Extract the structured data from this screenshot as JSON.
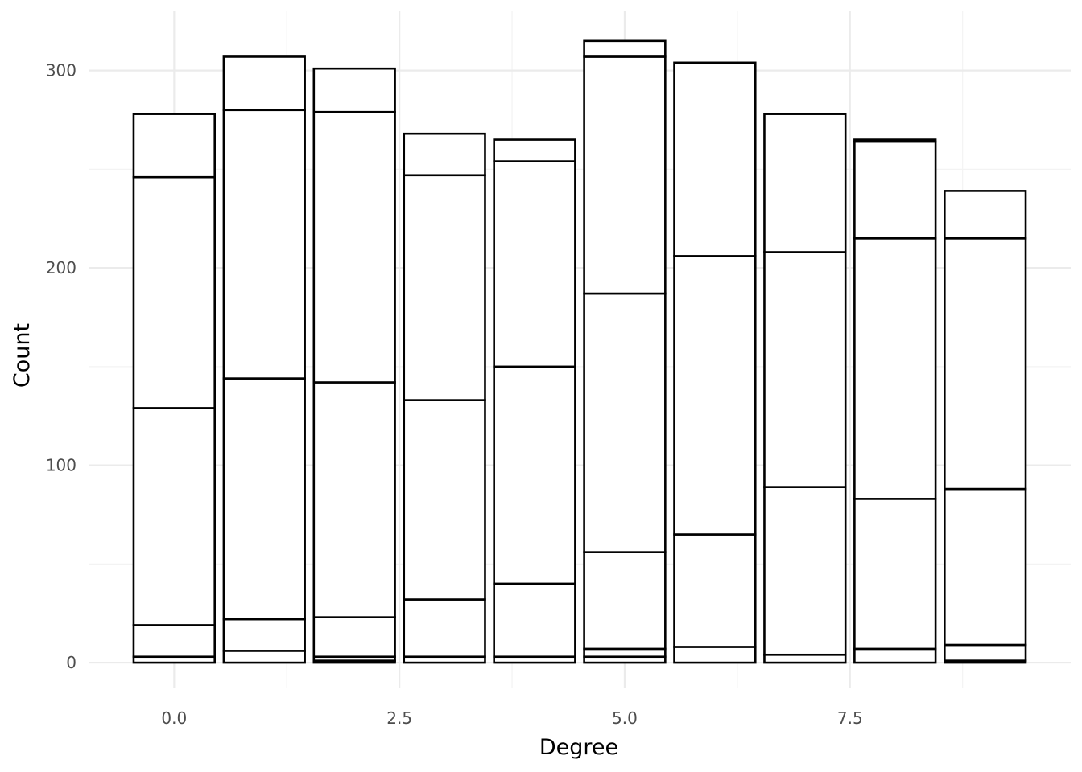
{
  "chart_data": {
    "type": "bar",
    "stacked": true,
    "title": "",
    "xlabel": "Degree",
    "ylabel": "Count",
    "xlim": [
      -0.95,
      9.95
    ],
    "ylim": [
      -13,
      330
    ],
    "x_ticks": [
      0.0,
      2.5,
      5.0,
      7.5
    ],
    "x_tick_labels": [
      "0.0",
      "2.5",
      "5.0",
      "7.5"
    ],
    "y_ticks": [
      0,
      100,
      200,
      300
    ],
    "y_tick_labels": [
      "0",
      "100",
      "200",
      "300"
    ],
    "x_minor_ticks": [
      1.25,
      3.75,
      6.25,
      8.75
    ],
    "y_minor_ticks": [
      50,
      150,
      250
    ],
    "grid": true,
    "legend": "none",
    "colors": {
      "bar_fill": "#ffffff",
      "bar_outline": "#000000",
      "grid": "#ebebeb"
    },
    "x": [
      0,
      1,
      2,
      3,
      4,
      5,
      6,
      7,
      8,
      9
    ],
    "stack_boundaries": [
      [
        0,
        3,
        19,
        129,
        246,
        278
      ],
      [
        0,
        6,
        22,
        144,
        280,
        307
      ],
      [
        0,
        1,
        3,
        23,
        142,
        279,
        301
      ],
      [
        0,
        3,
        32,
        133,
        247,
        268
      ],
      [
        0,
        3,
        40,
        150,
        254,
        265
      ],
      [
        0,
        3,
        7,
        56,
        187,
        307,
        315
      ],
      [
        0,
        8,
        65,
        206,
        304
      ],
      [
        0,
        4,
        89,
        208,
        278
      ],
      [
        0,
        7,
        83,
        215,
        264,
        265
      ],
      [
        0,
        1,
        9,
        88,
        215,
        239
      ]
    ],
    "totals": [
      278,
      307,
      301,
      268,
      265,
      315,
      304,
      278,
      265,
      239
    ]
  }
}
